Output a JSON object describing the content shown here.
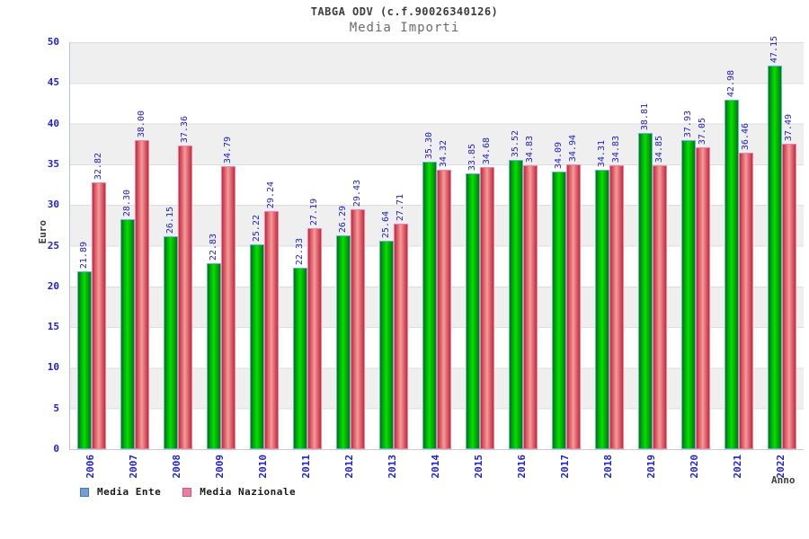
{
  "chart_data": {
    "type": "bar",
    "title": "TABGA ODV (c.f.90026340126)",
    "subtitle": "Media Importi",
    "xlabel": "Anno",
    "ylabel": "Euro",
    "ylim": [
      0,
      50
    ],
    "yticks": [
      0,
      5,
      10,
      15,
      20,
      25,
      30,
      35,
      40,
      45,
      50
    ],
    "grid": "alternating horizontal bands, gray top band",
    "legend_position": "bottom-left",
    "value_label_color": "#2222cc",
    "axis_text_color": "#2222cc",
    "categories": [
      "2006",
      "2007",
      "2008",
      "2009",
      "2010",
      "2011",
      "2012",
      "2013",
      "2014",
      "2015",
      "2016",
      "2017",
      "2018",
      "2019",
      "2020",
      "2021",
      "2022"
    ],
    "series": [
      {
        "name": "Media Ente",
        "legend_swatch_color": "#6f9fd8",
        "bar_edge_color": "#077707",
        "bar_center_color": "#00e203",
        "bar_border_color": "#64b5e6",
        "values": [
          21.89,
          28.3,
          26.15,
          22.83,
          25.22,
          22.33,
          26.29,
          25.64,
          35.3,
          33.85,
          35.52,
          34.09,
          34.31,
          38.81,
          37.93,
          42.98,
          47.15
        ]
      },
      {
        "name": "Media Nazionale",
        "legend_swatch_color": "#ee7ba0",
        "bar_edge_color": "#c42a3c",
        "bar_center_color": "#f29c9c",
        "bar_border_color": "#f083ad",
        "values": [
          32.82,
          38.0,
          37.36,
          34.79,
          29.24,
          27.19,
          29.43,
          27.71,
          34.32,
          34.68,
          34.83,
          34.94,
          34.83,
          34.85,
          37.05,
          36.46,
          37.49
        ]
      }
    ]
  }
}
